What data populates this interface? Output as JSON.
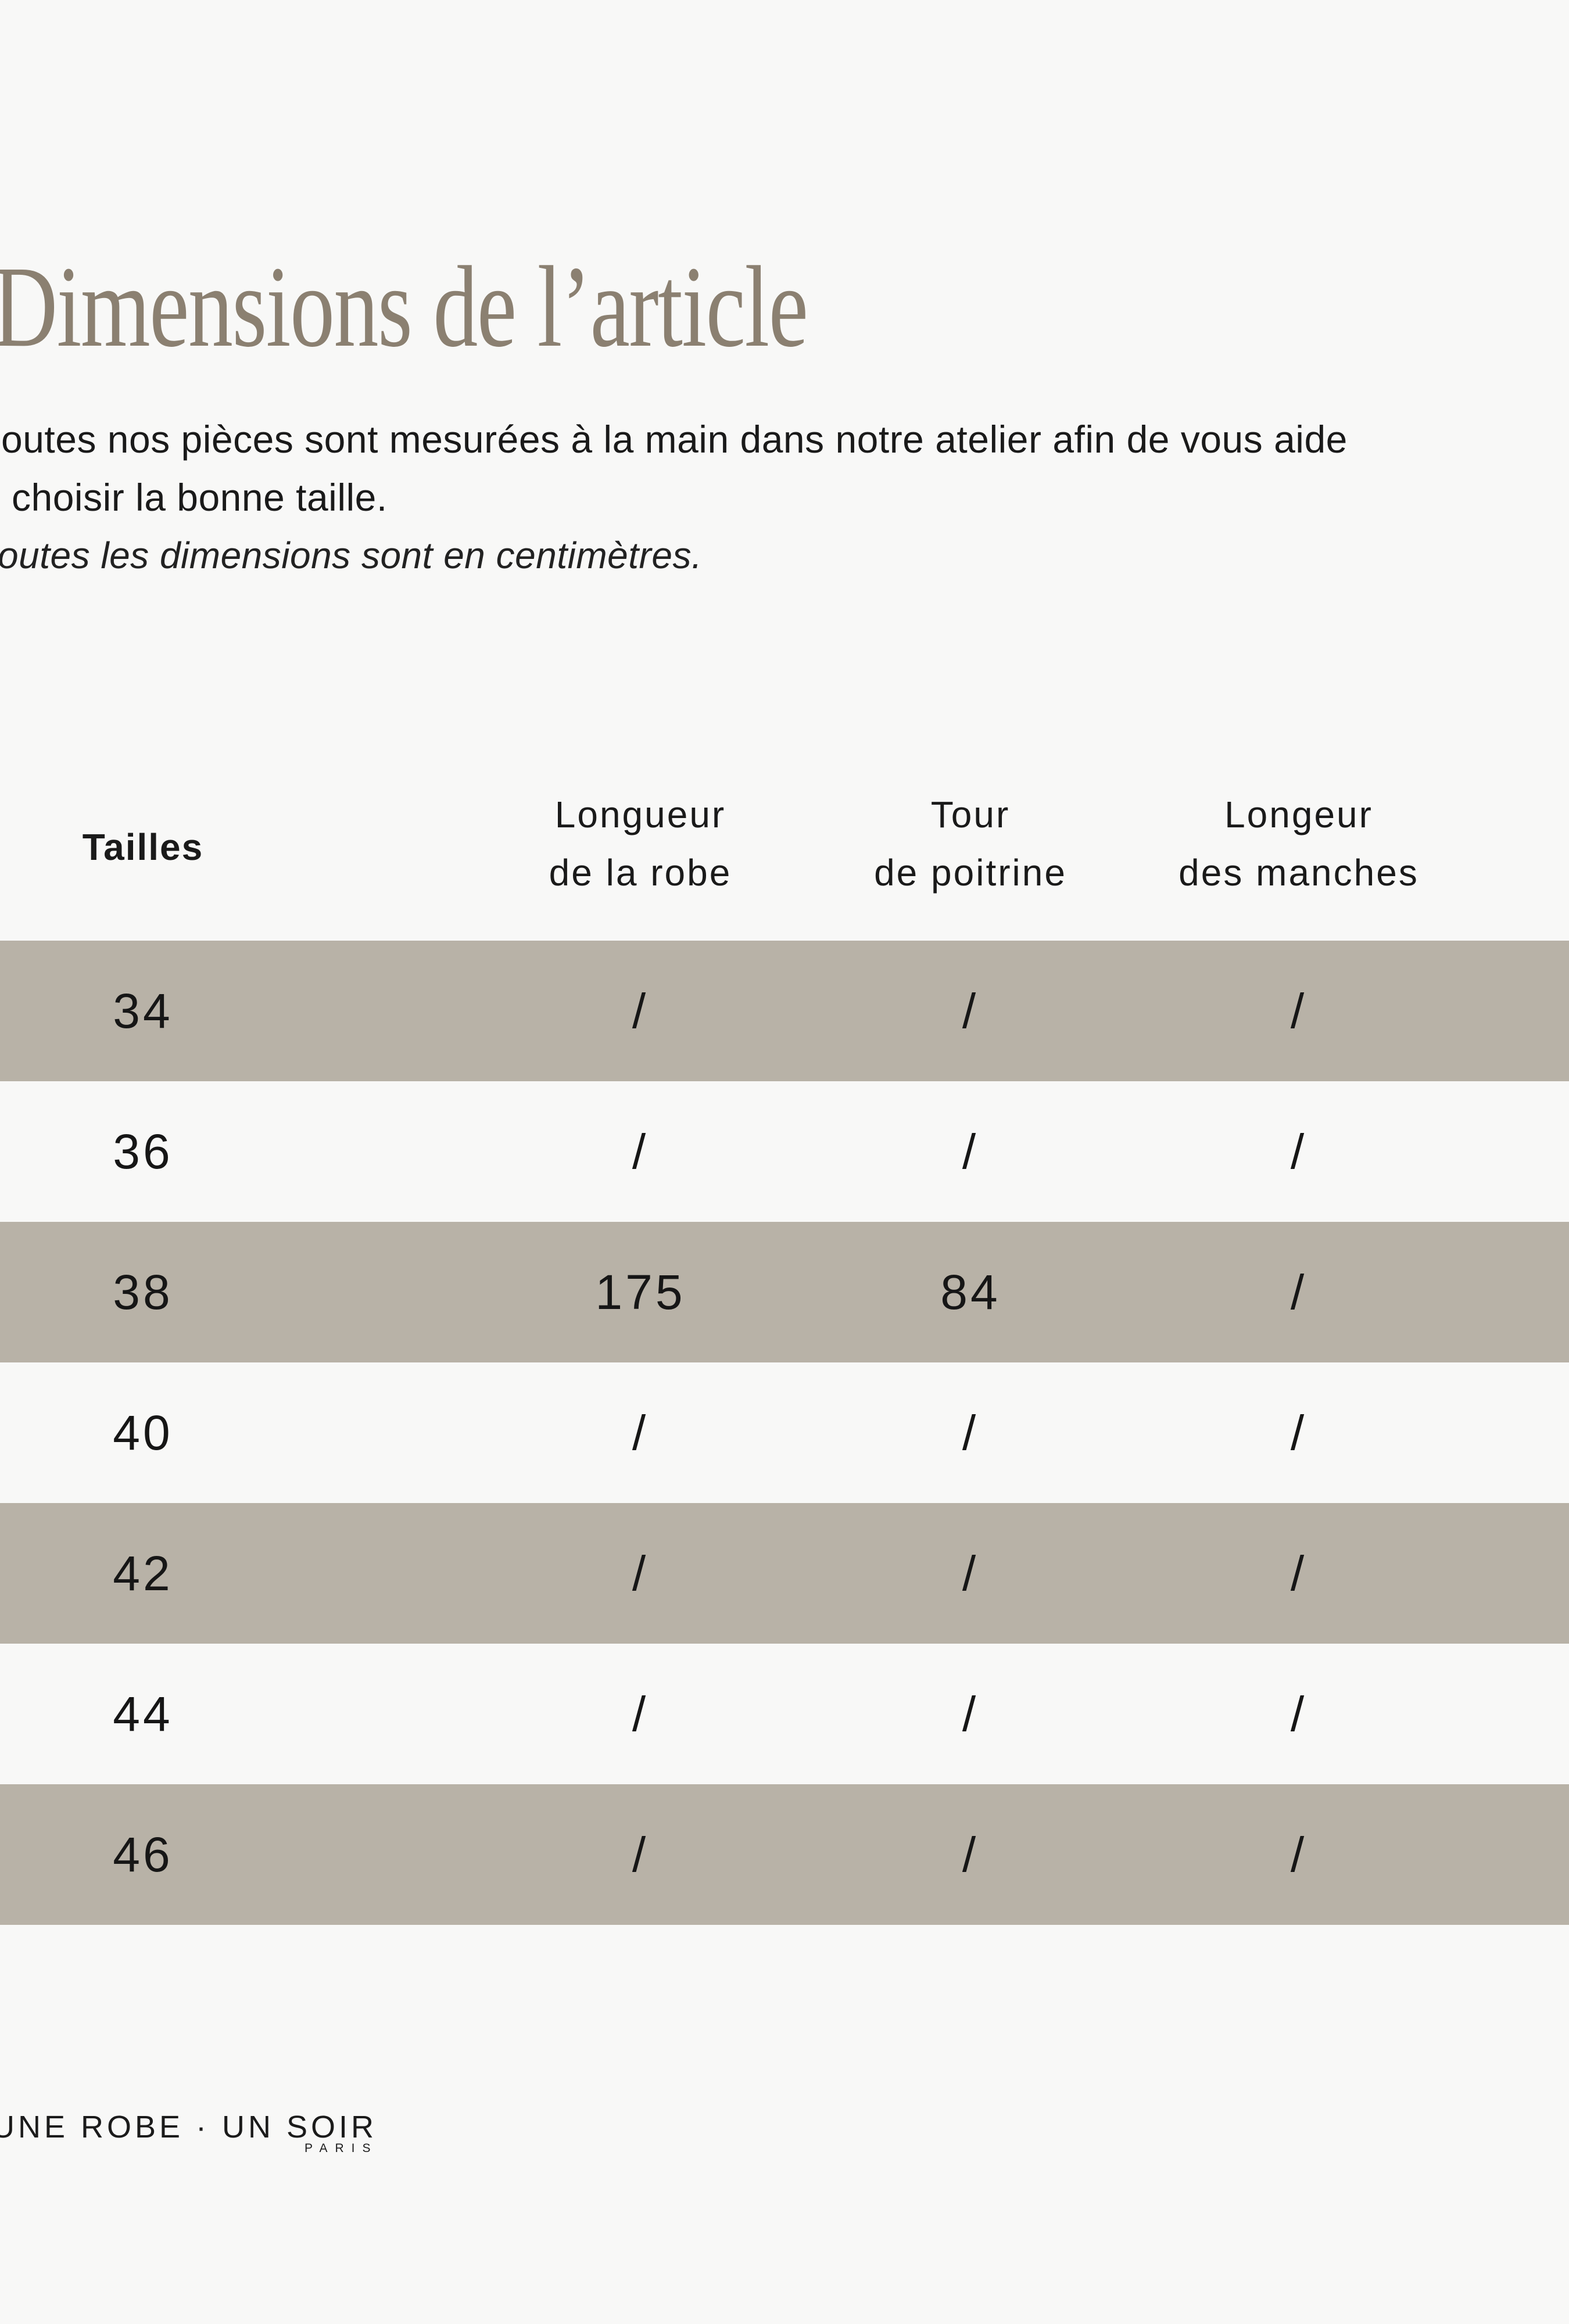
{
  "colors": {
    "background": "#f8f8f7",
    "row_highlight": "#b8b2a7",
    "title": "#8b8071",
    "text": "#1a1a1a"
  },
  "header": {
    "title": "Dimensions de l’article",
    "intro_line_1": "outes nos pièces sont mesurées à la main dans notre atelier afin de vous aide",
    "intro_line_2": "choisir la bonne taille.",
    "note": "outes les dimensions sont en centimètres."
  },
  "table": {
    "columns": [
      {
        "line1": "Tailles",
        "line2": ""
      },
      {
        "line1": "Longueur",
        "line2": "de la robe"
      },
      {
        "line1": "Tour",
        "line2": "de poitrine"
      },
      {
        "line1": "Longeur",
        "line2": "des manches"
      }
    ],
    "rows": [
      {
        "size": "34",
        "values": [
          "/",
          "/",
          "/"
        ]
      },
      {
        "size": "36",
        "values": [
          "/",
          "/",
          "/"
        ]
      },
      {
        "size": "38",
        "values": [
          "175",
          "84",
          "/"
        ]
      },
      {
        "size": "40",
        "values": [
          "/",
          "/",
          "/"
        ]
      },
      {
        "size": "42",
        "values": [
          "/",
          "/",
          "/"
        ]
      },
      {
        "size": "44",
        "values": [
          "/",
          "/",
          "/"
        ]
      },
      {
        "size": "46",
        "values": [
          "/",
          "/",
          "/"
        ]
      }
    ]
  },
  "footer": {
    "brand": "UNE ROBE · UN SOIR",
    "brand_sub": "PARIS"
  }
}
